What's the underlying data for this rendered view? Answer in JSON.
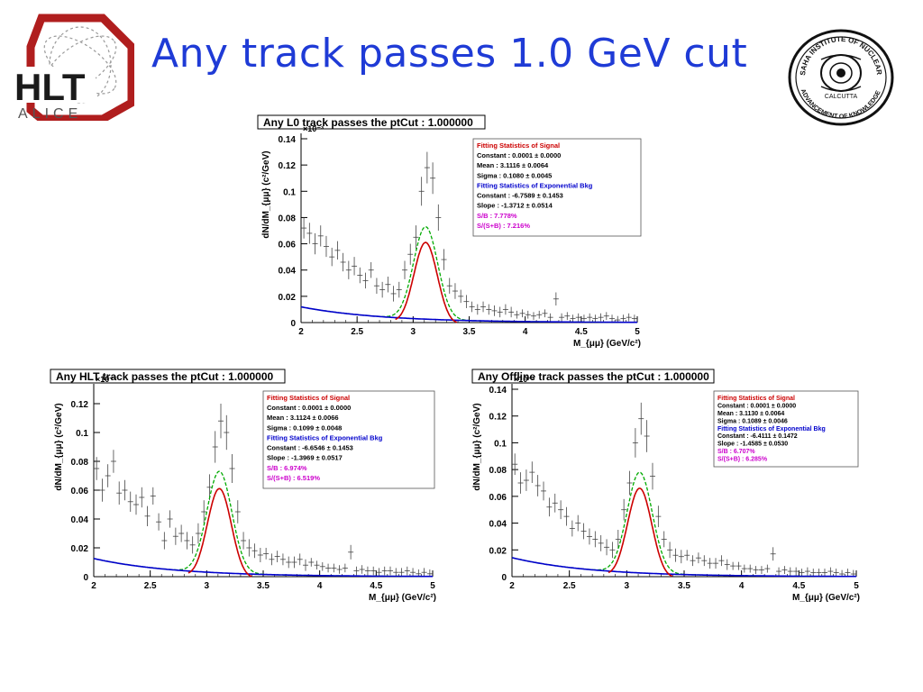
{
  "slide": {
    "title": "Any track passes 1.0 GeV cut",
    "logo_left_text": "HLT",
    "logo_left_subtext": "ALICE",
    "logo_right_text": [
      "SAHA INSTITUTE OF NUCLEAR PHYSICS",
      "CALCUTTA",
      "ADVANCEMENT OF KNOWLEDGE"
    ],
    "title_color": "#1f3bd6"
  },
  "colors": {
    "signal": "#cc0000",
    "background": "#0000cc",
    "total": "#00aa00",
    "ratio": "#cc00cc",
    "data": "#444444"
  },
  "chart_data": [
    {
      "type": "scatter",
      "title": "Any L0 track passes the ptCut : 1.000000",
      "xlabel": "M_{μμ} (GeV/c²)",
      "ylabel": "dN/dM_{μμ} (c²/GeV)",
      "exponent_label": "×10⁻³",
      "xlim": [
        2,
        5
      ],
      "ylim": [
        0,
        0.14
      ],
      "xticks": [
        "2",
        "2.5",
        "3",
        "3.5",
        "4",
        "4.5",
        "5"
      ],
      "yticks": [
        "0",
        "0.02",
        "0.04",
        "0.06",
        "0.08",
        "0.1",
        "0.12",
        "0.14"
      ],
      "grid": false,
      "legend_position": "top-right",
      "stats": [
        {
          "text": "Fitting Statistics of Signal",
          "kind": "header-red"
        },
        {
          "text": "Constant :  0.0001 ±  0.0000",
          "kind": "plain"
        },
        {
          "text": "Mean     :  3.1116 ±  0.0064",
          "kind": "plain"
        },
        {
          "text": "Sigma    :  0.1080 ±  0.0045",
          "kind": "plain"
        },
        {
          "text": "Fitting Statistics of Exponential Bkg",
          "kind": "header-blue"
        },
        {
          "text": "Constant : -6.7589 ±  0.1453",
          "kind": "plain"
        },
        {
          "text": "Slope     : -1.3712 ±  0.0514",
          "kind": "plain"
        },
        {
          "text": "S/B       :  7.778%",
          "kind": "magenta"
        },
        {
          "text": "S/(S+B)    :  7.216%",
          "kind": "magenta"
        }
      ],
      "fit": {
        "mean": 3.1116,
        "sigma": 0.108,
        "peak": 0.044,
        "bkg_constant": -6.7589,
        "bkg_slope": -1.3712
      },
      "series": [
        {
          "name": "data",
          "x": [
            2.025,
            2.075,
            2.125,
            2.175,
            2.225,
            2.275,
            2.325,
            2.375,
            2.425,
            2.475,
            2.525,
            2.575,
            2.625,
            2.675,
            2.725,
            2.775,
            2.825,
            2.875,
            2.925,
            2.975,
            3.025,
            3.075,
            3.125,
            3.175,
            3.225,
            3.275,
            3.325,
            3.375,
            3.425,
            3.475,
            3.525,
            3.575,
            3.625,
            3.675,
            3.725,
            3.775,
            3.825,
            3.875,
            3.925,
            3.975,
            4.025,
            4.075,
            4.125,
            4.175,
            4.225,
            4.275,
            4.325,
            4.375,
            4.425,
            4.475,
            4.525,
            4.575,
            4.625,
            4.675,
            4.725,
            4.775,
            4.825,
            4.875,
            4.925,
            4.975
          ],
          "y": [
            0.072,
            0.068,
            0.06,
            0.066,
            0.058,
            0.05,
            0.055,
            0.046,
            0.04,
            0.043,
            0.036,
            0.032,
            0.04,
            0.028,
            0.025,
            0.029,
            0.022,
            0.025,
            0.04,
            0.052,
            0.065,
            0.1,
            0.118,
            0.11,
            0.08,
            0.048,
            0.028,
            0.024,
            0.02,
            0.016,
            0.012,
            0.01,
            0.012,
            0.01,
            0.009,
            0.008,
            0.01,
            0.008,
            0.006,
            0.007,
            0.006,
            0.005,
            0.006,
            0.007,
            0.004,
            0.018,
            0.004,
            0.005,
            0.003,
            0.004,
            0.003,
            0.004,
            0.003,
            0.004,
            0.005,
            0.003,
            0.002,
            0.003,
            0.004,
            0.003
          ],
          "err": [
            0.008,
            0.008,
            0.008,
            0.008,
            0.008,
            0.007,
            0.007,
            0.007,
            0.007,
            0.007,
            0.006,
            0.006,
            0.006,
            0.006,
            0.006,
            0.006,
            0.006,
            0.006,
            0.007,
            0.008,
            0.009,
            0.011,
            0.012,
            0.012,
            0.01,
            0.008,
            0.006,
            0.006,
            0.005,
            0.005,
            0.004,
            0.004,
            0.004,
            0.004,
            0.004,
            0.004,
            0.004,
            0.004,
            0.003,
            0.003,
            0.003,
            0.003,
            0.003,
            0.003,
            0.003,
            0.005,
            0.003,
            0.003,
            0.003,
            0.003,
            0.003,
            0.003,
            0.003,
            0.003,
            0.003,
            0.003,
            0.003,
            0.003,
            0.003,
            0.003
          ]
        }
      ]
    },
    {
      "type": "scatter",
      "title": "Any HLT track passes the ptCut : 1.000000",
      "xlabel": "M_{μμ} (GeV/c²)",
      "ylabel": "dN/dM_{μμ} (c²/GeV)",
      "exponent_label": "×10⁻³",
      "xlim": [
        2,
        5
      ],
      "ylim": [
        0,
        0.13
      ],
      "xticks": [
        "2",
        "2.5",
        "3",
        "3.5",
        "4",
        "4.5",
        "5"
      ],
      "yticks": [
        "0",
        "0.02",
        "0.04",
        "0.06",
        "0.08",
        "0.1",
        "0.12"
      ],
      "grid": false,
      "legend_position": "top-right",
      "stats": [
        {
          "text": "Fitting Statistics of Signal",
          "kind": "header-red"
        },
        {
          "text": "Constant :  0.0001 ±  0.0000",
          "kind": "plain"
        },
        {
          "text": "Mean     :  3.1124 ±  0.0066",
          "kind": "plain"
        },
        {
          "text": "Sigma    :  0.1099 ±  0.0048",
          "kind": "plain"
        },
        {
          "text": "Fitting Statistics of Exponential Bkg",
          "kind": "header-blue"
        },
        {
          "text": "Constant : -6.6546 ±  0.1453",
          "kind": "plain"
        },
        {
          "text": "Slope     : -1.3969 ±  0.0517",
          "kind": "plain"
        },
        {
          "text": "S/B       :  6.974%",
          "kind": "magenta"
        },
        {
          "text": "S/(S+B)    :  6.519%",
          "kind": "magenta"
        }
      ],
      "fit": {
        "mean": 3.1124,
        "sigma": 0.1099,
        "peak": 0.044,
        "bkg_constant": -6.6546,
        "bkg_slope": -1.3969
      },
      "series": [
        {
          "name": "data",
          "x": [
            2.025,
            2.075,
            2.125,
            2.175,
            2.225,
            2.275,
            2.325,
            2.375,
            2.425,
            2.475,
            2.525,
            2.575,
            2.625,
            2.675,
            2.725,
            2.775,
            2.825,
            2.875,
            2.925,
            2.975,
            3.025,
            3.075,
            3.125,
            3.175,
            3.225,
            3.275,
            3.325,
            3.375,
            3.425,
            3.475,
            3.525,
            3.575,
            3.625,
            3.675,
            3.725,
            3.775,
            3.825,
            3.875,
            3.925,
            3.975,
            4.025,
            4.075,
            4.125,
            4.175,
            4.225,
            4.275,
            4.325,
            4.375,
            4.425,
            4.475,
            4.525,
            4.575,
            4.625,
            4.675,
            4.725,
            4.775,
            4.825,
            4.875,
            4.925,
            4.975
          ],
          "y": [
            0.075,
            0.06,
            0.07,
            0.08,
            0.058,
            0.06,
            0.052,
            0.05,
            0.055,
            0.042,
            0.056,
            0.038,
            0.025,
            0.04,
            0.028,
            0.03,
            0.025,
            0.022,
            0.03,
            0.045,
            0.062,
            0.09,
            0.108,
            0.1,
            0.075,
            0.045,
            0.025,
            0.02,
            0.018,
            0.015,
            0.016,
            0.012,
            0.014,
            0.012,
            0.01,
            0.01,
            0.012,
            0.008,
            0.01,
            0.008,
            0.007,
            0.006,
            0.006,
            0.005,
            0.006,
            0.017,
            0.004,
            0.005,
            0.004,
            0.004,
            0.003,
            0.004,
            0.004,
            0.003,
            0.003,
            0.004,
            0.003,
            0.002,
            0.003,
            0.002
          ],
          "err": [
            0.008,
            0.008,
            0.008,
            0.008,
            0.008,
            0.007,
            0.007,
            0.007,
            0.007,
            0.007,
            0.006,
            0.006,
            0.006,
            0.006,
            0.006,
            0.006,
            0.006,
            0.006,
            0.007,
            0.008,
            0.009,
            0.011,
            0.012,
            0.012,
            0.01,
            0.008,
            0.006,
            0.006,
            0.005,
            0.005,
            0.004,
            0.004,
            0.004,
            0.004,
            0.004,
            0.004,
            0.004,
            0.004,
            0.003,
            0.003,
            0.003,
            0.003,
            0.003,
            0.003,
            0.003,
            0.005,
            0.003,
            0.003,
            0.003,
            0.003,
            0.003,
            0.003,
            0.003,
            0.003,
            0.003,
            0.003,
            0.003,
            0.003,
            0.003,
            0.003
          ]
        }
      ]
    },
    {
      "type": "scatter",
      "title": "Any Offline track passes the ptCut : 1.000000",
      "xlabel": "M_{μμ} (GeV/c²)",
      "ylabel": "dN/dM_{μμ} (c²/GeV)",
      "exponent_label": "×10⁻³",
      "xlim": [
        2,
        5
      ],
      "ylim": [
        0,
        0.14
      ],
      "xticks": [
        "2",
        "2.5",
        "3",
        "3.5",
        "4",
        "4.5",
        "5"
      ],
      "yticks": [
        "0",
        "0.02",
        "0.04",
        "0.06",
        "0.08",
        "0.1",
        "0.12",
        "0.14"
      ],
      "grid": false,
      "legend_position": "top-right",
      "stats": [
        {
          "text": "Fitting Statistics of Signal",
          "kind": "header-red"
        },
        {
          "text": "Constant :  0.0001 ±  0.0000",
          "kind": "plain"
        },
        {
          "text": "Mean     :  3.1130 ±  0.0064",
          "kind": "plain"
        },
        {
          "text": "Sigma    :  0.1089 ±  0.0046",
          "kind": "plain"
        },
        {
          "text": "Fitting Statistics of Exponential Bkg",
          "kind": "header-blue"
        },
        {
          "text": "Constant : -6.4111 ±  0.1472",
          "kind": "plain"
        },
        {
          "text": "Slope     : -1.4585 ±  0.0530",
          "kind": "plain"
        },
        {
          "text": "S/B       :  6.707%",
          "kind": "magenta"
        },
        {
          "text": "S/(S+B)    :  6.285%",
          "kind": "magenta"
        }
      ],
      "fit": {
        "mean": 3.113,
        "sigma": 0.1089,
        "peak": 0.047,
        "bkg_constant": -6.4111,
        "bkg_slope": -1.4585
      },
      "series": [
        {
          "name": "data",
          "x": [
            2.025,
            2.075,
            2.125,
            2.175,
            2.225,
            2.275,
            2.325,
            2.375,
            2.425,
            2.475,
            2.525,
            2.575,
            2.625,
            2.675,
            2.725,
            2.775,
            2.825,
            2.875,
            2.925,
            2.975,
            3.025,
            3.075,
            3.125,
            3.175,
            3.225,
            3.275,
            3.325,
            3.375,
            3.425,
            3.475,
            3.525,
            3.575,
            3.625,
            3.675,
            3.725,
            3.775,
            3.825,
            3.875,
            3.925,
            3.975,
            4.025,
            4.075,
            4.125,
            4.175,
            4.225,
            4.275,
            4.325,
            4.375,
            4.425,
            4.475,
            4.525,
            4.575,
            4.625,
            4.675,
            4.725,
            4.775,
            4.825,
            4.875,
            4.925,
            4.975
          ],
          "y": [
            0.084,
            0.07,
            0.072,
            0.078,
            0.068,
            0.064,
            0.052,
            0.055,
            0.05,
            0.045,
            0.036,
            0.04,
            0.034,
            0.03,
            0.028,
            0.025,
            0.022,
            0.02,
            0.028,
            0.05,
            0.07,
            0.1,
            0.118,
            0.105,
            0.075,
            0.045,
            0.028,
            0.02,
            0.016,
            0.015,
            0.016,
            0.012,
            0.014,
            0.012,
            0.01,
            0.01,
            0.012,
            0.009,
            0.008,
            0.008,
            0.006,
            0.006,
            0.005,
            0.005,
            0.006,
            0.017,
            0.004,
            0.005,
            0.004,
            0.004,
            0.003,
            0.004,
            0.003,
            0.003,
            0.003,
            0.004,
            0.003,
            0.002,
            0.003,
            0.002
          ],
          "err": [
            0.008,
            0.008,
            0.008,
            0.008,
            0.008,
            0.007,
            0.007,
            0.007,
            0.007,
            0.007,
            0.006,
            0.006,
            0.006,
            0.006,
            0.006,
            0.006,
            0.006,
            0.006,
            0.007,
            0.008,
            0.009,
            0.011,
            0.012,
            0.012,
            0.01,
            0.008,
            0.006,
            0.006,
            0.005,
            0.005,
            0.004,
            0.004,
            0.004,
            0.004,
            0.004,
            0.004,
            0.004,
            0.004,
            0.003,
            0.003,
            0.003,
            0.003,
            0.003,
            0.003,
            0.003,
            0.005,
            0.003,
            0.003,
            0.003,
            0.003,
            0.003,
            0.003,
            0.003,
            0.003,
            0.003,
            0.003,
            0.003,
            0.003,
            0.003,
            0.003
          ]
        }
      ]
    }
  ]
}
